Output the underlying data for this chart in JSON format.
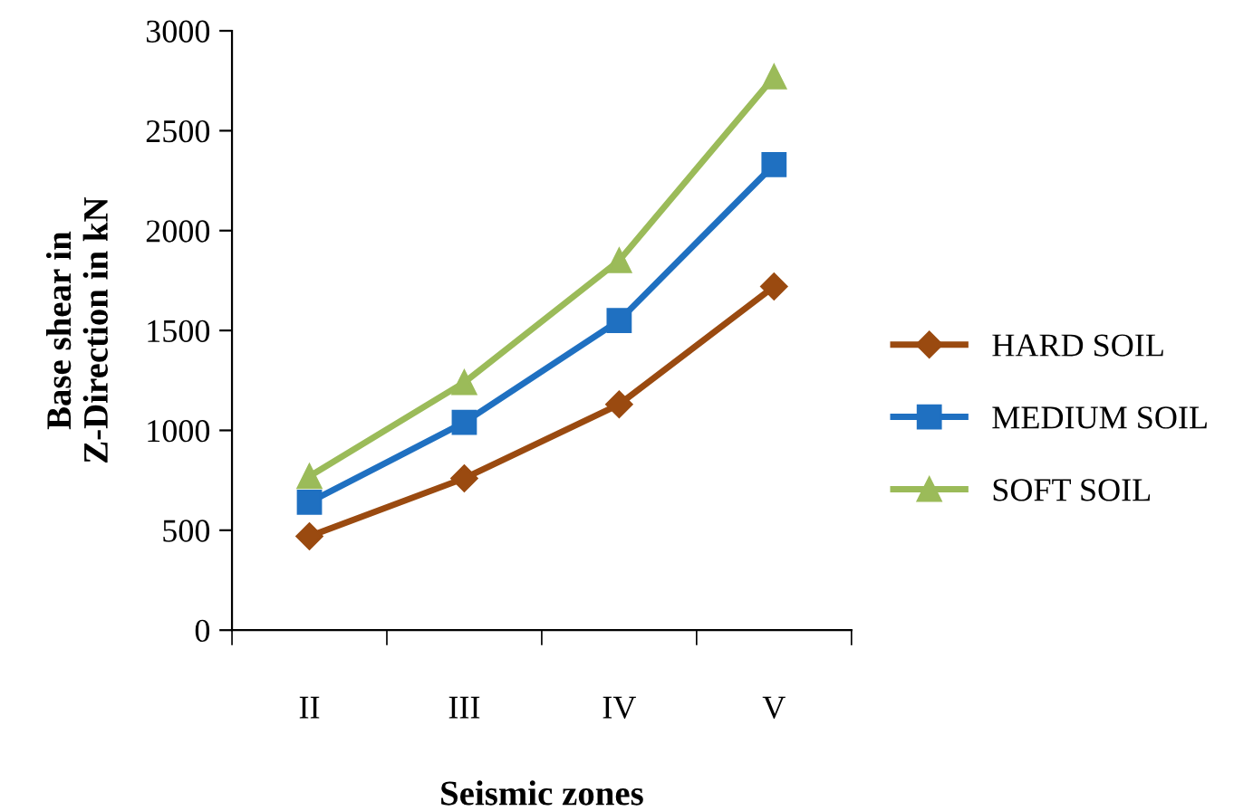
{
  "chart_data": {
    "type": "line",
    "xlabel": "Seismic zones",
    "ylabel": "Base shear in\nZ-Direction in kN",
    "categories": [
      "II",
      "III",
      "IV",
      "V"
    ],
    "series": [
      {
        "name": "HARD SOIL",
        "color": "#9a4a10",
        "marker": "diamond",
        "values": [
          470,
          760,
          1130,
          1720
        ]
      },
      {
        "name": "MEDIUM SOIL",
        "color": "#1f70c1",
        "marker": "square",
        "values": [
          640,
          1040,
          1550,
          2330
        ]
      },
      {
        "name": "SOFT SOIL",
        "color": "#9bbb59",
        "marker": "triangle",
        "values": [
          770,
          1240,
          1850,
          2770
        ]
      }
    ],
    "ylim": [
      0,
      3000
    ],
    "yticks": [
      0,
      500,
      1000,
      1500,
      2000,
      2500,
      3000
    ],
    "grid": false,
    "legend": "right",
    "line_style": "solid"
  }
}
